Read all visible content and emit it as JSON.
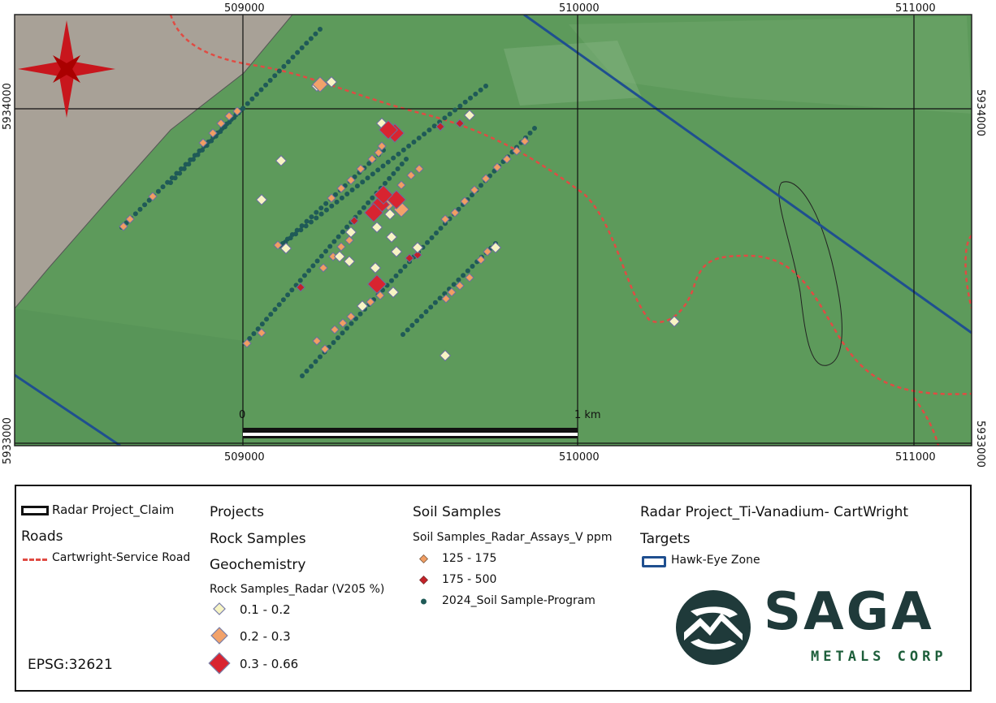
{
  "map": {
    "grid_labels": {
      "top": [
        "509000",
        "510000",
        "511000"
      ],
      "bottom": [
        "509000",
        "510000",
        "511000"
      ],
      "left": [
        "5934000",
        "5933000"
      ],
      "right": [
        "5934000",
        "5933000"
      ]
    },
    "scale_bar": {
      "start_label": "0",
      "end_label": "1 km"
    },
    "compass_icon": "north-star-icon",
    "colors": {
      "grass": "#5d9a5b",
      "claim_fill": "#a8a197",
      "road": "#e04b43",
      "boundary_blue": "#1f4f8f",
      "soil_dot": "#1f5a57",
      "rock_low": "#f7f4c4",
      "rock_mid": "#f2a26a",
      "rock_high": "#d82430",
      "soil_125": "#f19e63",
      "soil_175": "#c42128"
    }
  },
  "legend": {
    "claim_label": "Radar Project_Claim",
    "roads_heading": "Roads",
    "road_label": "Cartwright-Service Road",
    "projects_heading": "Projects",
    "rock_samples_heading": "Rock Samples",
    "geochem_heading": "Geochemistry",
    "rock_layer_label": "Rock Samples_Radar (V205 %)",
    "rock_classes": [
      "0.1 - 0.2",
      "0.2 - 0.3",
      "0.3 - 0.66"
    ],
    "soil_heading": "Soil Samples",
    "soil_layer_label": "Soil Samples_Radar_Assays_V ppm",
    "soil_classes": [
      "125 - 175",
      "175 - 500",
      "2024_Soil Sample-Program"
    ],
    "project_title": "Radar Project_Ti-Vanadium- CartWright",
    "targets_heading": "Targets",
    "target_label": "Hawk-Eye Zone",
    "epsg": "EPSG:32621",
    "logo": {
      "name": "SAGA",
      "subtitle": "METALS CORP",
      "color": "#1f3a3a",
      "accent": "#1d5e3a"
    }
  }
}
